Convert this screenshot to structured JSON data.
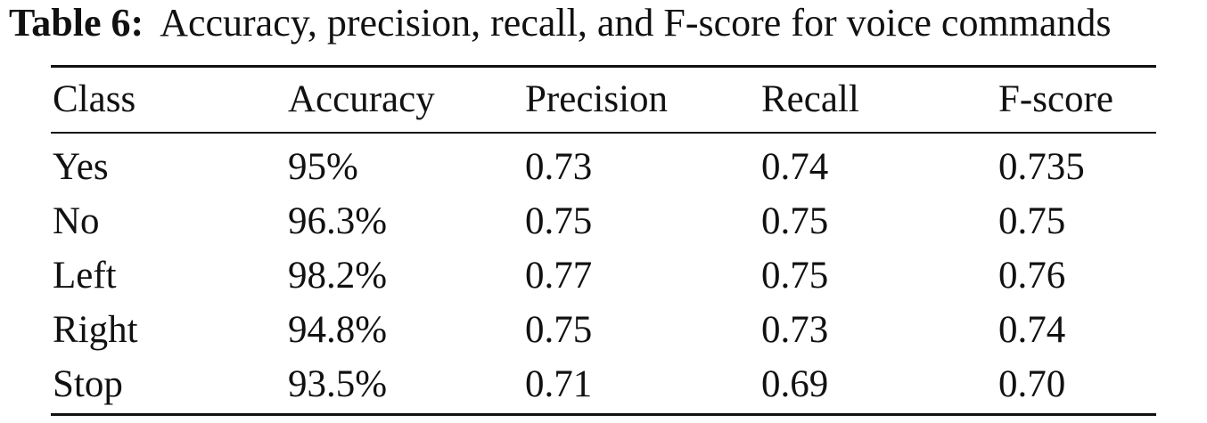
{
  "caption": {
    "label": "Table 6:",
    "text": "Accuracy, precision, recall, and F-score for voice commands"
  },
  "table": {
    "columns": [
      "Class",
      "Accuracy",
      "Precision",
      "Recall",
      "F-score"
    ],
    "rows": [
      [
        "Yes",
        "95%",
        "0.73",
        "0.74",
        "0.735"
      ],
      [
        "No",
        "96.3%",
        "0.75",
        "0.75",
        "0.75"
      ],
      [
        "Left",
        "98.2%",
        "0.77",
        "0.75",
        "0.76"
      ],
      [
        "Right",
        "94.8%",
        "0.75",
        "0.73",
        "0.74"
      ],
      [
        "Stop",
        "93.5%",
        "0.71",
        "0.69",
        "0.70"
      ]
    ]
  }
}
